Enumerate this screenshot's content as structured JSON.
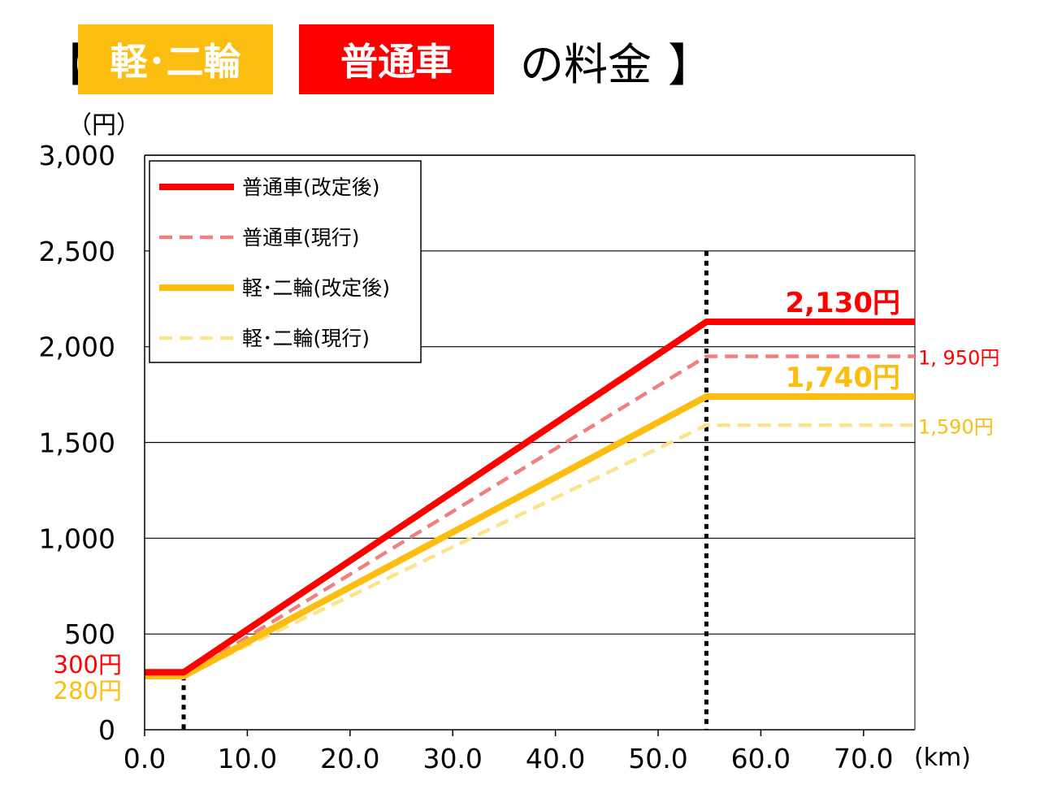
{
  "colors": {
    "red": "#ff0000",
    "red_light": "#f08080",
    "yellow": "#fbbd0f",
    "yellow_light": "#fce38a",
    "grid": "#000000"
  },
  "header": {
    "open": "【",
    "kei_label": "軽･二輪",
    "futsu_label": "普通車",
    "suffix": "の料金",
    "close": "】"
  },
  "chart_data": {
    "type": "line",
    "ylabel": "（円）",
    "xlabel": "(km)",
    "xlim": [
      0,
      75
    ],
    "ylim": [
      0,
      3000
    ],
    "grid": true,
    "legend_position": "top-left",
    "x_ticks": [
      "0.0",
      "10.0",
      "20.0",
      "30.0",
      "40.0",
      "50.0",
      "60.0",
      "70.0"
    ],
    "x_tick_values": [
      0,
      10,
      20,
      30,
      40,
      50,
      60,
      70
    ],
    "y_ticks": [
      "0",
      "500",
      "1,000",
      "1,500",
      "2,000",
      "2,500",
      "3,000"
    ],
    "y_tick_values": [
      0,
      500,
      1000,
      1500,
      2000,
      2500,
      3000
    ],
    "reference_lines_x": [
      3.8,
      54.7
    ],
    "series": [
      {
        "name": "普通車(改定後)",
        "color": "#ff0000",
        "style": "solid",
        "x": [
          0,
          3.8,
          54.7,
          75
        ],
        "y": [
          300,
          300,
          2130,
          2130
        ]
      },
      {
        "name": "普通車(現行)",
        "color": "#f08080",
        "style": "dashed",
        "x": [
          0,
          3.8,
          54.7,
          75
        ],
        "y": [
          280,
          280,
          1950,
          1950
        ]
      },
      {
        "name": "軽･二輪(改定後)",
        "color": "#fbbd0f",
        "style": "solid",
        "x": [
          0,
          3.8,
          54.7,
          75
        ],
        "y": [
          280,
          280,
          1740,
          1740
        ]
      },
      {
        "name": "軽･二輪(現行)",
        "color": "#fce38a",
        "style": "dashed",
        "x": [
          0,
          3.8,
          54.7,
          75
        ],
        "y": [
          280,
          280,
          1590,
          1590
        ]
      }
    ],
    "annotations": [
      {
        "text": "2,130円",
        "color": "#ff0000",
        "x": 75,
        "y": 2130,
        "size": "large"
      },
      {
        "text": "1, 950円",
        "color": "#ff0000",
        "x": 75,
        "y": 1950,
        "size": "small"
      },
      {
        "text": "1,740円",
        "color": "#fbbd0f",
        "x": 75,
        "y": 1740,
        "size": "large"
      },
      {
        "text": "1,590円",
        "color": "#fbbd0f",
        "x": 75,
        "y": 1590,
        "size": "small"
      },
      {
        "text": "300円",
        "color": "#ff0000",
        "x": 0,
        "y": 300,
        "size": "left"
      },
      {
        "text": "280円",
        "color": "#fbbd0f",
        "x": 0,
        "y": 280,
        "size": "left"
      }
    ]
  }
}
